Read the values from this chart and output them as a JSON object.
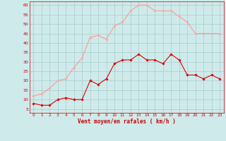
{
  "x": [
    0,
    1,
    2,
    3,
    4,
    5,
    6,
    7,
    8,
    9,
    10,
    11,
    12,
    13,
    14,
    15,
    16,
    17,
    18,
    19,
    20,
    21,
    22,
    23
  ],
  "vent_moyen": [
    8,
    7,
    7,
    10,
    11,
    10,
    10,
    20,
    18,
    21,
    29,
    31,
    31,
    34,
    31,
    31,
    29,
    34,
    31,
    23,
    23,
    21,
    23,
    21
  ],
  "rafales": [
    12,
    13,
    16,
    20,
    21,
    27,
    32,
    43,
    44,
    42,
    49,
    51,
    57,
    60,
    60,
    57,
    57,
    57,
    54,
    51,
    45,
    45,
    45,
    45
  ],
  "xlabel": "Vent moyen/en rafales ( km/h )",
  "ylim": [
    3,
    62
  ],
  "xlim": [
    -0.5,
    23.5
  ],
  "yticks": [
    5,
    10,
    15,
    20,
    25,
    30,
    35,
    40,
    45,
    50,
    55,
    60
  ],
  "xticks": [
    0,
    1,
    2,
    3,
    4,
    5,
    6,
    7,
    8,
    9,
    10,
    11,
    12,
    13,
    14,
    15,
    16,
    17,
    18,
    19,
    20,
    21,
    22,
    23
  ],
  "bg_color": "#ceeaea",
  "line_color_moyen": "#dd0000",
  "line_color_rafales": "#ff9999",
  "marker_color_moyen": "#dd0000",
  "marker_color_rafales": "#ffaaaa",
  "grid_color": "#aacccc",
  "xlabel_color": "#cc0000",
  "tick_color": "#cc0000",
  "spine_color": "#cc0000"
}
